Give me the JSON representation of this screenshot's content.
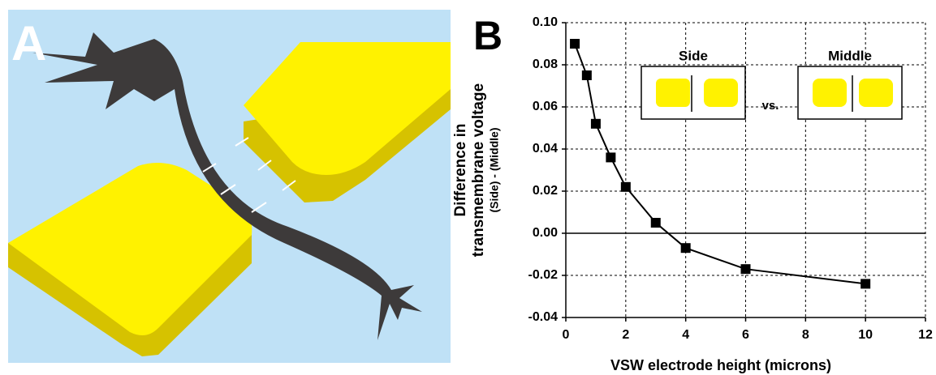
{
  "panel_labels": [
    "A",
    "B"
  ],
  "chart_data": {
    "type": "line",
    "xlabel": "VSW electrode height (microns)",
    "ylabel": [
      "Difference in",
      "transmembrane voltage"
    ],
    "ylabel_sub": "(Side) - (Middle)",
    "inset": {
      "left": "Side",
      "middle": "vs.",
      "right": "Middle"
    },
    "x": [
      0.3,
      0.7,
      1,
      1.5,
      2,
      3,
      4,
      6,
      10
    ],
    "series": [
      {
        "color": "#000000",
        "values": [
          0.09,
          0.075,
          0.052,
          0.036,
          0.022,
          0.005,
          -0.007,
          -0.017,
          -0.024
        ]
      }
    ],
    "xlim": [
      0,
      12
    ],
    "xticks": [
      0,
      2,
      4,
      6,
      8,
      10,
      12
    ],
    "ylim": [
      -0.04,
      0.1
    ],
    "yticks": [
      {
        "value": 0.1,
        "label": "0.10"
      },
      0.08,
      0.06,
      0.04,
      0.02,
      {
        "value": 0,
        "label": "0.00"
      },
      -0.02,
      -0.04
    ],
    "grid": true
  }
}
